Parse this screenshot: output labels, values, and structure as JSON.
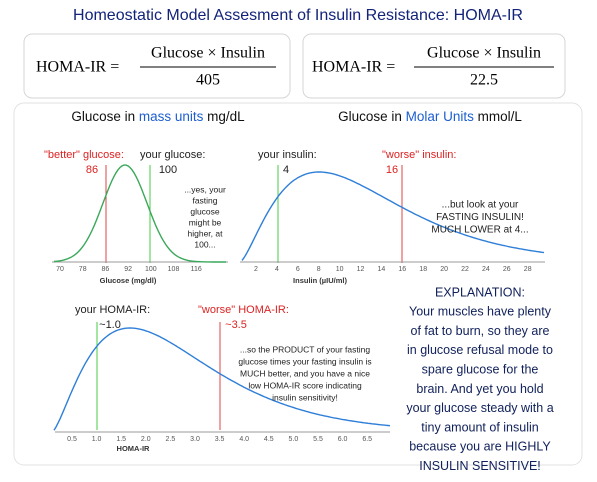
{
  "title": "Homeostatic Model Assesment of Insulin Resistance:  HOMA-IR",
  "formulas": [
    {
      "lhs": "HOMA-IR =",
      "numerator": "Glucose × Insulin",
      "denominator": "405"
    },
    {
      "lhs": "HOMA-IR =",
      "numerator": "Glucose × Insulin",
      "denominator": "22.5"
    }
  ],
  "subheadings": [
    {
      "before": "Glucose in ",
      "highlight": "mass units",
      "after": " mg/dL"
    },
    {
      "before": "Glucose in ",
      "highlight": "Molar Units",
      "after": " mmol/L"
    }
  ],
  "panels": [
    {
      "axis_label": "Glucose (mg/dl)",
      "ticks": [
        "70",
        "78",
        "86",
        "92",
        "100",
        "108",
        "116"
      ],
      "labels": [
        "\"better\" glucose:",
        "86",
        "your glucose:",
        "100"
      ],
      "note": [
        "...yes, your",
        "fasting",
        "glucose",
        "might be",
        "higher, at",
        "100..."
      ]
    },
    {
      "axis_label": "Insulin (µIU/ml)",
      "ticks": [
        "2",
        "4",
        "6",
        "8",
        "10",
        "12",
        "14",
        "16",
        "18",
        "20",
        "22",
        "24",
        "26",
        "28"
      ],
      "labels": [
        "your insulin:",
        "4",
        "\"worse\" insulin:",
        "16"
      ],
      "note": [
        "...but look at your",
        "FASTING INSULIN!",
        "MUCH LOWER at 4..."
      ]
    },
    {
      "axis_label": "HOMA-IR",
      "ticks": [
        "0.5",
        "1.0",
        "1.5",
        "2.0",
        "2.5",
        "3.0",
        "3.5",
        "4.0",
        "4.5",
        "5.0",
        "5.5",
        "6.0",
        "6.5"
      ],
      "labels": [
        "your HOMA-IR:",
        "~1.0",
        "\"worse\" HOMA-IR:",
        "~3.5"
      ],
      "note": [
        "...so the PRODUCT of your fasting",
        "glucose times your fasting insulin is",
        "MUCH better, and you have a nice",
        "low HOMA-IR score indicating",
        "insulin sensitivity!"
      ]
    }
  ],
  "explanation": [
    "EXPLANATION:",
    "Your muscles have plenty",
    "of fat to burn, so they are",
    "in glucose refusal mode to",
    "spare glucose for the",
    "brain. And yet you hold",
    "your glucose steady with a",
    "tiny amount of insulin",
    "because you are HIGHLY",
    "INSULIN SENSITIVE!"
  ]
}
